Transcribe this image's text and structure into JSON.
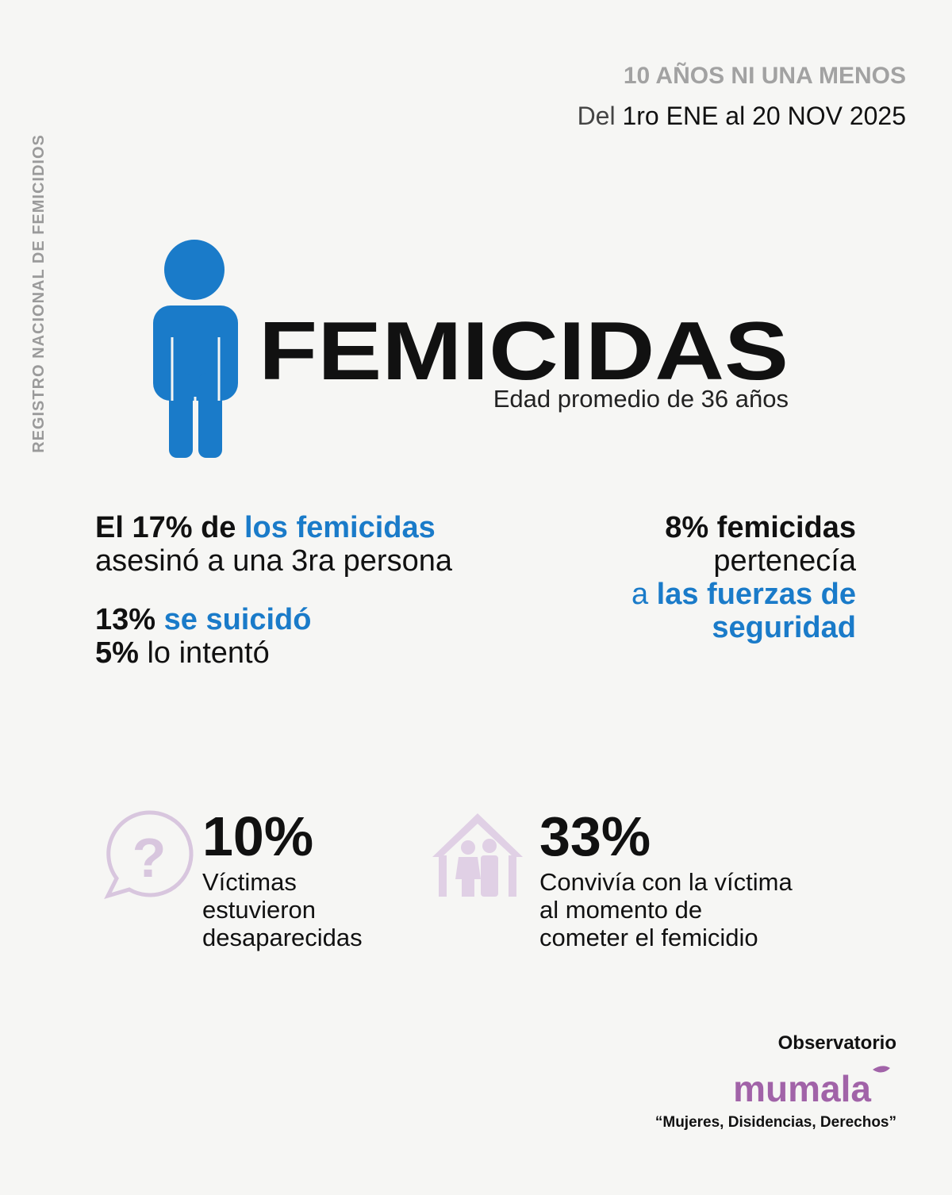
{
  "side_label": "REGISTRO NACIONAL DE FEMICIDIOS",
  "header": {
    "campaign": "10 AÑOS NI UNA MENOS",
    "period_prefix": "Del",
    "period": "1ro ENE al 20 NOV 2025"
  },
  "title": "FEMICIDAS",
  "subtitle": "Edad promedio de 36 años",
  "third_person": {
    "lead": "El 17% de",
    "highlight": "los femicidas",
    "text": "asesinó a una 3ra persona"
  },
  "suicide": {
    "value": "13%",
    "text": "se suicidó"
  },
  "attempt": {
    "value": "5%",
    "text": "lo intentó"
  },
  "security": {
    "lead": "8% femicidas",
    "text": "pertenecía",
    "connector": "a",
    "highlight_lines": [
      "las fuerzas de",
      "seguridad"
    ]
  },
  "missing": {
    "value": "10%",
    "lines": [
      "Víctimas",
      "estuvieron",
      "desaparecidas"
    ]
  },
  "cohabited": {
    "value": "33%",
    "lines": [
      "Convivía con la víctima",
      "al momento de",
      "cometer el femicidio"
    ]
  },
  "footer": {
    "observatory": "Observatorio",
    "logo": "mumala",
    "motto": "“Mujeres, Disidencias, Derechos”"
  }
}
